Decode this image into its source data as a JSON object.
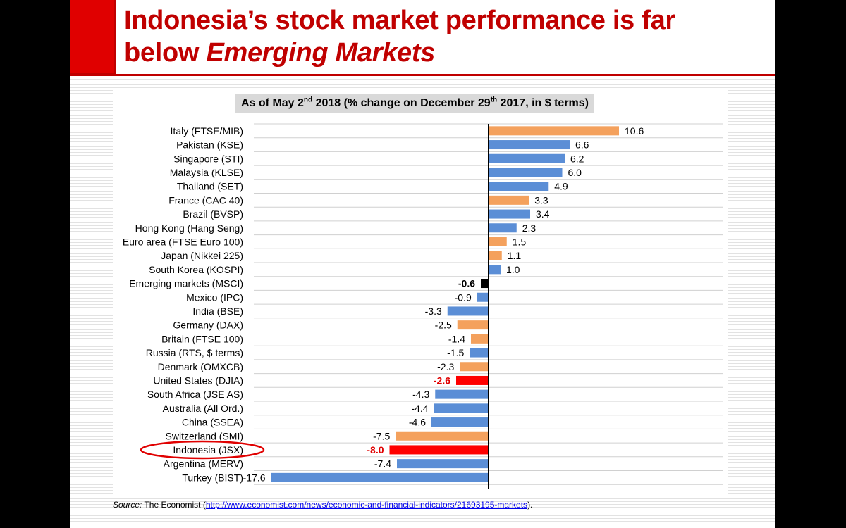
{
  "slide": {
    "title_line1": "Indonesia’s stock market performance is far",
    "title_line2_plain": "below ",
    "title_line2_italic": "Emerging Markets"
  },
  "subtitle": {
    "part1": "As of May 2",
    "sup1": "nd",
    "part2": " 2018 (% change on December 29",
    "sup2": "th",
    "part3": " 2017, in $ terms)"
  },
  "source": {
    "label": "Source:",
    "publisher": " The Economist (",
    "url": "http://www.economist.com/news/economic-and-financial-indicators/21693195-markets",
    "suffix": ")."
  },
  "colors": {
    "title": "#c00000",
    "blue": "#5b8ed6",
    "orange": "#f4a15d",
    "red": "#ff0000",
    "black": "#000000",
    "circle": "#e00000"
  },
  "chart_data": {
    "type": "bar",
    "orientation": "horizontal",
    "xlim": [
      -19,
      19
    ],
    "grid": true,
    "categories": [
      "Italy (FTSE/MIB)",
      "Pakistan (KSE)",
      "Singapore (STI)",
      "Malaysia (KLSE)",
      "Thailand (SET)",
      "France (CAC 40)",
      "Brazil (BVSP)",
      "Hong Kong (Hang Seng)",
      "Euro area (FTSE Euro 100)",
      "Japan (Nikkei 225)",
      "South Korea (KOSPI)",
      "Emerging markets (MSCI)",
      "Mexico (IPC)",
      "India (BSE)",
      "Germany (DAX)",
      "Britain (FTSE 100)",
      "Russia (RTS, $ terms)",
      "Denmark (OMXCB)",
      "United States (DJIA)",
      "South Africa (JSE AS)",
      "Australia (All Ord.)",
      "China (SSEA)",
      "Switzerland (SMI)",
      "Indonesia (JSX)",
      "Argentina (MERV)",
      "Turkey (BIST)"
    ],
    "values": [
      10.6,
      6.6,
      6.2,
      6.0,
      4.9,
      3.3,
      3.4,
      2.3,
      1.5,
      1.1,
      1.0,
      -0.6,
      -0.9,
      -3.3,
      -2.5,
      -1.4,
      -1.5,
      -2.3,
      -2.6,
      -4.3,
      -4.4,
      -4.6,
      -7.5,
      -8.0,
      -7.4,
      -17.6
    ],
    "labels": [
      "10.6",
      "6.6",
      "6.2",
      "6.0",
      "4.9",
      "3.3",
      "3.4",
      "2.3",
      "1.5",
      "1.1",
      "1.0",
      "-0.6",
      "-0.9",
      "-3.3",
      "-2.5",
      "-1.4",
      "-1.5",
      "-2.3",
      "-2.6",
      "-4.3",
      "-4.4",
      "-4.6",
      "-7.5",
      "-8.0",
      "-7.4",
      "-17.6"
    ],
    "bar_colors": [
      "orange",
      "blue",
      "blue",
      "blue",
      "blue",
      "orange",
      "blue",
      "blue",
      "orange",
      "orange",
      "blue",
      "black",
      "blue",
      "blue",
      "orange",
      "orange",
      "blue",
      "orange",
      "red",
      "blue",
      "blue",
      "blue",
      "orange",
      "red",
      "blue",
      "blue"
    ],
    "highlight_labels": [
      "-0.6",
      "-2.6",
      "-8.0"
    ],
    "circled_category": "Indonesia (JSX)"
  }
}
